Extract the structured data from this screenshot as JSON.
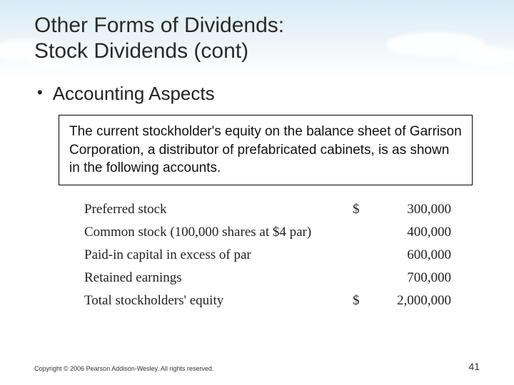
{
  "title_line1": "Other Forms of Dividends:",
  "title_line2": "Stock Dividends (cont)",
  "bullet": "Accounting Aspects",
  "box_text": "The current stockholder's equity on the balance sheet of Garrison Corporation, a distributor of prefabricated cabinets, is as shown in the following accounts.",
  "equity": {
    "rows": [
      {
        "label": "Preferred stock",
        "dollar": "$",
        "value": "300,000"
      },
      {
        "label": "Common stock (100,000 shares at $4 par)",
        "dollar": "",
        "value": "400,000"
      },
      {
        "label": "Paid-in capital in excess of par",
        "dollar": "",
        "value": "600,000"
      },
      {
        "label": "Retained earnings",
        "dollar": "",
        "value": "700,000"
      }
    ],
    "total": {
      "label": "Total stockholders' equity",
      "dollar": "$",
      "value": "2,000,000"
    }
  },
  "copyright": "Copyright © 2006 Pearson Addison-Wesley. All rights reserved.",
  "page": "41",
  "colors": {
    "title": "#2a2a2a",
    "text": "#222222",
    "border": "#000000",
    "sky_top": "#d8ecf7"
  }
}
